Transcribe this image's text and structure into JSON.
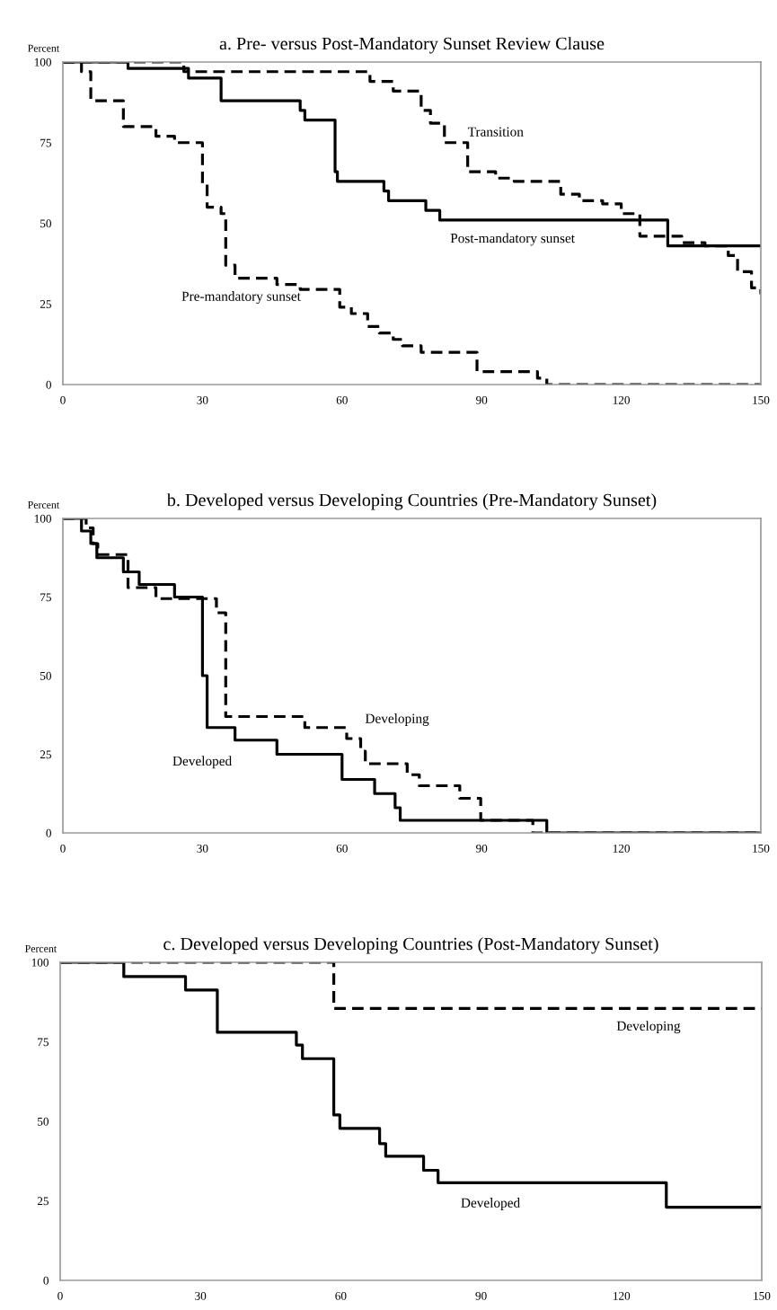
{
  "chart_data": [
    {
      "type": "step",
      "title": "a. Pre- versus Post-Mandatory Sunset Review Clause",
      "ylabel": "Percent",
      "xlim": [
        0,
        150
      ],
      "ylim": [
        0,
        100
      ],
      "xticks": [
        0,
        30,
        60,
        90,
        120,
        150
      ],
      "yticks": [
        0,
        25,
        50,
        75,
        100
      ],
      "grid": false,
      "legend": false,
      "series": [
        {
          "name": "Post-mandatory sunset",
          "color": "#000000",
          "line_style": "solid",
          "x": [
            0,
            14,
            27,
            34,
            51,
            52,
            58.5,
            59,
            69,
            70,
            78,
            81,
            130,
            150
          ],
          "values": [
            100,
            98,
            95,
            88,
            85,
            82,
            66,
            63,
            60,
            57,
            54,
            51,
            43,
            43
          ]
        },
        {
          "name": "Transition",
          "color": "#000000",
          "line_style": "dashed",
          "x": [
            0,
            26,
            66,
            71,
            77,
            79,
            82,
            87,
            93,
            97,
            107,
            111,
            116,
            120,
            124,
            133,
            138,
            143,
            145,
            148,
            150
          ],
          "values": [
            100,
            97,
            94,
            91,
            85,
            81,
            75,
            66,
            64,
            63,
            59,
            57,
            56,
            53,
            46,
            44,
            43,
            40,
            35,
            30,
            28
          ]
        },
        {
          "name": "Pre-mandatory sunset",
          "color": "#000000",
          "line_style": "dashed",
          "x": [
            0,
            4,
            6,
            13,
            20,
            24,
            30,
            31,
            34,
            35,
            37,
            46,
            51,
            59.5,
            62,
            65.5,
            68,
            71,
            73,
            77,
            89,
            102,
            104,
            150
          ],
          "values": [
            100,
            97,
            88,
            80,
            77,
            75,
            62,
            55,
            53,
            37,
            33,
            31,
            29.5,
            24,
            22,
            18,
            16,
            14,
            12,
            10,
            4,
            2,
            0,
            0
          ]
        }
      ]
    },
    {
      "type": "step",
      "title": "b. Developed versus Developing Countries (Pre-Mandatory Sunset)",
      "ylabel": "Percent",
      "xlim": [
        0,
        150
      ],
      "ylim": [
        0,
        100
      ],
      "xticks": [
        0,
        30,
        60,
        90,
        120,
        150
      ],
      "yticks": [
        0,
        25,
        50,
        75,
        100
      ],
      "grid": false,
      "legend": false,
      "series": [
        {
          "name": "Developed",
          "color": "#000000",
          "line_style": "solid",
          "x": [
            0,
            4,
            6,
            7.3,
            13,
            16.4,
            24,
            30,
            31,
            37,
            46,
            60,
            67,
            71.4,
            72.5,
            104,
            150
          ],
          "values": [
            100,
            96,
            92,
            87.5,
            83,
            79,
            75,
            50,
            33.5,
            29.5,
            25,
            17,
            12.5,
            8,
            4,
            0,
            0
          ]
        },
        {
          "name": "Developing",
          "color": "#000000",
          "line_style": "dashed",
          "x": [
            0,
            5,
            6.5,
            7.5,
            14,
            20,
            33,
            35,
            52,
            61,
            64,
            65,
            74,
            76.6,
            85.3,
            89.8,
            101,
            150
          ],
          "values": [
            100,
            97,
            92,
            88.5,
            78,
            74.5,
            70,
            37,
            33.5,
            30,
            26,
            22,
            18.5,
            15,
            11,
            4,
            0,
            0
          ]
        }
      ]
    },
    {
      "type": "step",
      "title": "c. Developed versus Developing Countries (Post-Mandatory Sunset)",
      "ylabel": "Percent",
      "xlim": [
        0,
        150
      ],
      "ylim": [
        0,
        100
      ],
      "xticks": [
        0,
        30,
        60,
        90,
        120,
        150
      ],
      "yticks": [
        0,
        25,
        50,
        75,
        100
      ],
      "grid": false,
      "legend": false,
      "series": [
        {
          "name": "Developed",
          "color": "#000000",
          "line_style": "solid",
          "x": [
            0,
            13.6,
            26.8,
            33.6,
            50.5,
            51.8,
            58.5,
            59.8,
            68.3,
            69.6,
            77.7,
            80.8,
            129.6,
            150
          ],
          "values": [
            100,
            95.5,
            91.3,
            78,
            74,
            69.7,
            52,
            47.8,
            43,
            39,
            34.6,
            30.7,
            23,
            23
          ]
        },
        {
          "name": "Developing",
          "color": "#000000",
          "line_style": "dashed",
          "x": [
            0,
            58.5,
            150
          ],
          "values": [
            100,
            85.5,
            85.5
          ]
        }
      ]
    }
  ]
}
